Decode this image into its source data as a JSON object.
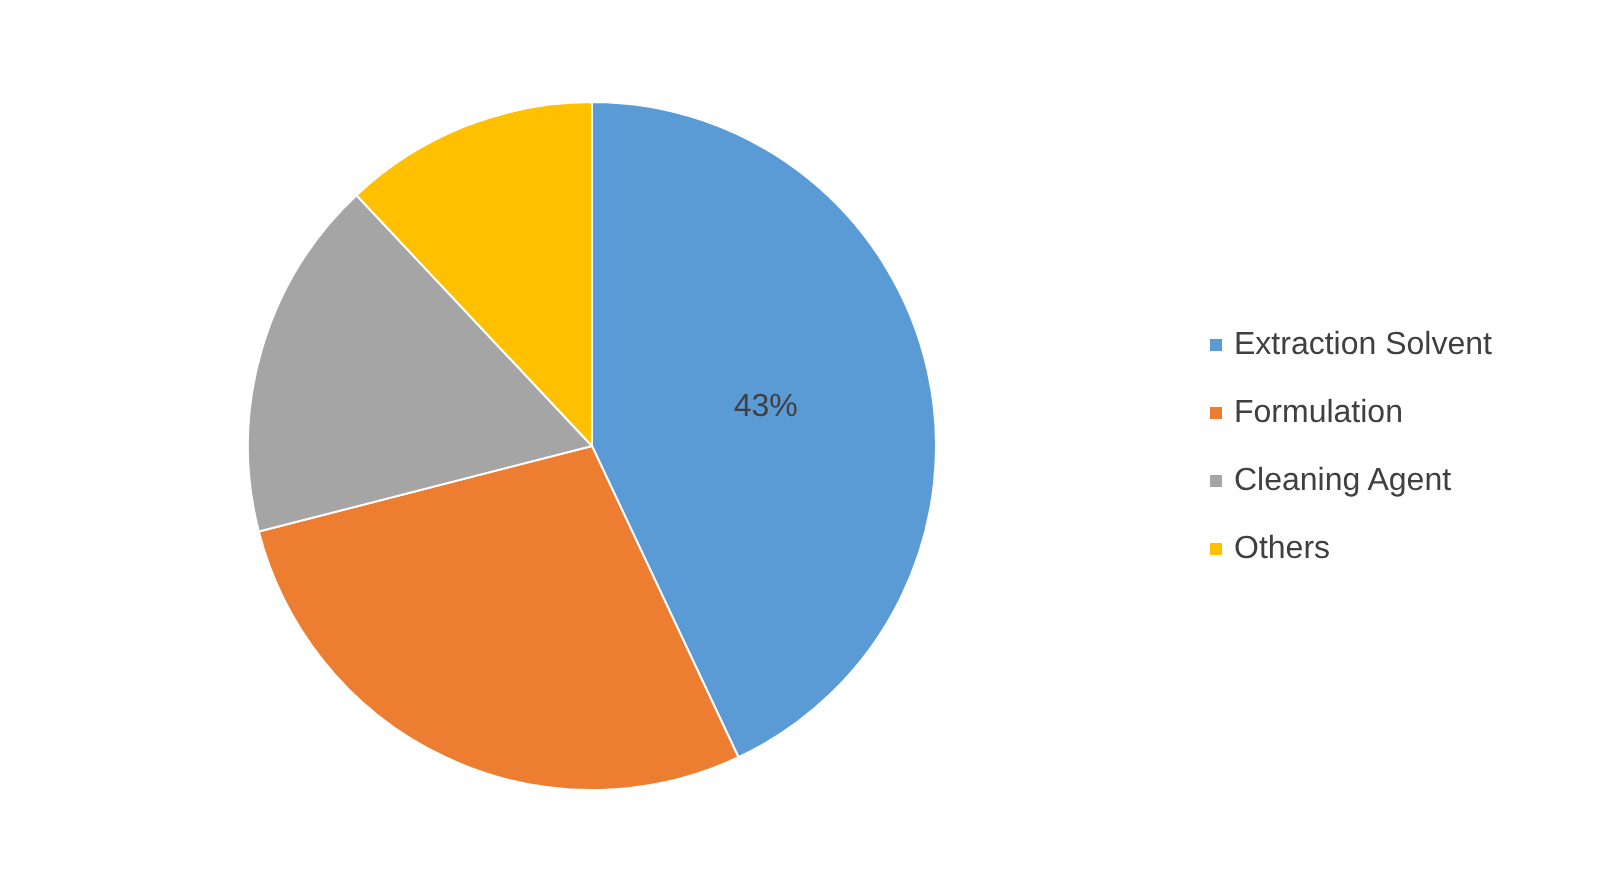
{
  "chart_data": {
    "type": "pie",
    "categories": [
      "Extraction Solvent",
      "Formulation",
      "Cleaning Agent",
      "Others"
    ],
    "values": [
      43,
      28,
      17,
      12
    ],
    "colors": [
      "#5b9bd5",
      "#ed7d31",
      "#a5a5a5",
      "#ffc000"
    ],
    "value_labels": [
      "43%",
      null,
      null,
      null
    ],
    "legend": "right"
  }
}
